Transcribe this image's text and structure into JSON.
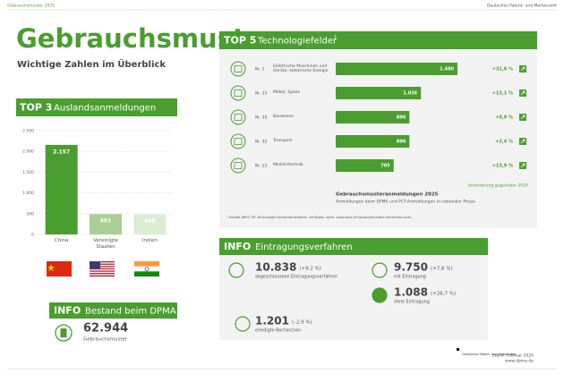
{
  "header": {
    "left": "Gebrauchsmuster 2025",
    "right": "Deutsches Patent- und Markenamt"
  },
  "title": "Gebrauchsmuster",
  "subtitle": "Wichtige Zahlen im Überblick",
  "chart_data": [
    {
      "type": "bar",
      "label": "TOP 3",
      "title": "Auslandsanmeldungen",
      "categories": [
        "China",
        "Vereinigte Staaten",
        "Indien"
      ],
      "values": [
        2157,
        491,
        485
      ],
      "value_labels": [
        "2.157",
        "491",
        "485"
      ],
      "colors": [
        "#4a9e2f",
        "#a9cf94",
        "#dcedd3"
      ],
      "ylim": [
        0,
        2500
      ],
      "yticks": [
        0,
        500,
        {
          "value": 1000,
          "label": "1.000"
        },
        {
          "value": 1500,
          "label": "1.500"
        },
        {
          "value": 2000,
          "label": "2.000"
        },
        {
          "value": 2500,
          "label": "2.500"
        }
      ],
      "grid": true
    },
    {
      "type": "barh",
      "label": "TOP 5",
      "title": "Technologiefelder",
      "title_note": "1",
      "ranks": [
        "Nr. 1",
        "Nr. 33",
        "Nr. 35",
        "Nr. 32",
        "Nr. 13"
      ],
      "categories": [
        "Elektrische Maschinen und Geräte, elektrische Energie",
        "Möbel, Spiele",
        "Bauwesen",
        "Transport",
        "Medizintechnik"
      ],
      "values": [
        1480,
        1036,
        896,
        896,
        705
      ],
      "value_labels": [
        "1.480",
        "1.036",
        "896",
        "896",
        "705"
      ],
      "changes": [
        "+31,6 %",
        "+13,1 %",
        "+0,9 %",
        "+2,4 %",
        "+13,9 %"
      ],
      "color": "#4a9e2f",
      "xlim": [
        0,
        1600
      ],
      "note": "Veränderung gegenüber 2024",
      "caption": "Gebrauchsmusteranmeldungen 2025",
      "caption_sub": "Anmeldungen beim DPMA und PCT-Anmeldungen in nationaler Phase",
      "footnote": "¹ Gemäß WIPO IPC-Technologie Konkordanztabelle, verfügbar unter: www.wipo.int/ipstats/en/index.html#resources."
    }
  ],
  "info_procedure": {
    "label": "INFO",
    "title": "Eintragungsverfahren",
    "items": [
      {
        "value": "10.838",
        "change": "(+9,2 %)",
        "text": "abgeschlossene Eintragungsverfahren"
      },
      {
        "value": "9.750",
        "change": "(+7,6 %)",
        "text": "mit Eintragung"
      },
      {
        "value": "1.088",
        "change": "(+26,7 %)",
        "text": "ohne Eintragung"
      },
      {
        "value": "1.201",
        "change": "(–2,9 %)",
        "text": "erledigte Recherchen"
      }
    ]
  },
  "info_stock": {
    "label": "INFO",
    "title": "Bestand beim DPMA",
    "value": "62.944",
    "text": "Gebrauchsmuster"
  },
  "footer": {
    "logo": "Deutsches Patent- und Markenamt",
    "date": "Stand: Februar 2026",
    "url": "www.dpma.de"
  }
}
